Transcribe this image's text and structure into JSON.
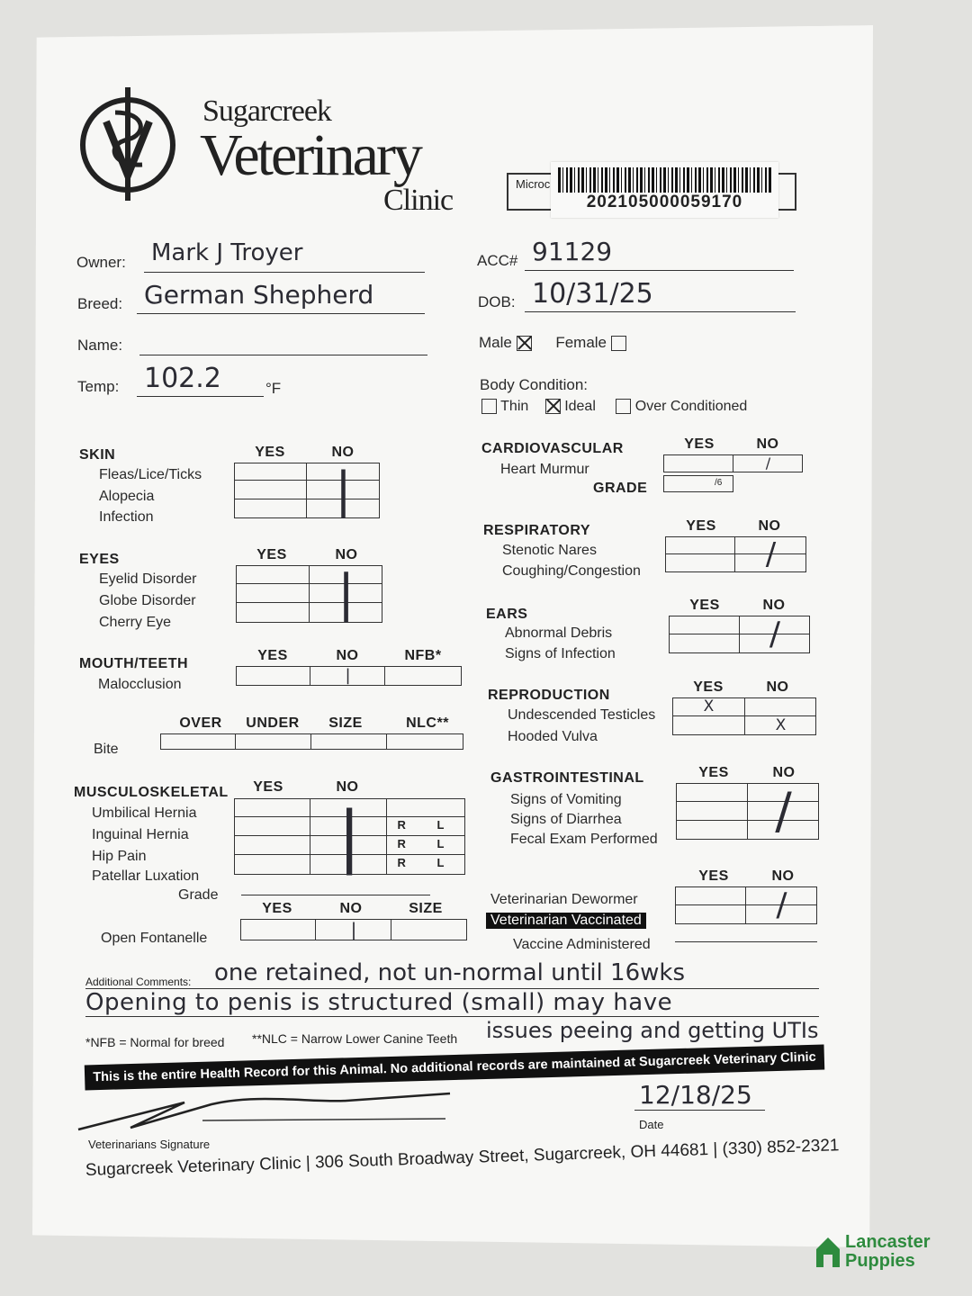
{
  "clinic": {
    "name_line1": "Sugarcreek",
    "name_line2": "Veterinary",
    "name_line3": "Clinic"
  },
  "microchip": {
    "label": "Microc",
    "number": "202105000059170"
  },
  "fields": {
    "owner": {
      "label": "Owner:",
      "value": "Mark J Troyer"
    },
    "breed": {
      "label": "Breed:",
      "value": "German Shepherd"
    },
    "name": {
      "label": "Name:",
      "value": ""
    },
    "temp": {
      "label": "Temp:",
      "value": "102.2",
      "unit": "°F"
    },
    "acc": {
      "label": "ACC#",
      "value": "91129"
    },
    "dob": {
      "label": "DOB:",
      "value": "10/31/25"
    }
  },
  "sex": {
    "male_label": "Male",
    "male_checked": true,
    "female_label": "Female",
    "female_checked": false
  },
  "body_condition": {
    "label": "Body Condition:",
    "options": [
      {
        "label": "Thin",
        "checked": false
      },
      {
        "label": "Ideal",
        "checked": true
      },
      {
        "label": "Over Conditioned",
        "checked": false
      }
    ]
  },
  "sections": [
    {
      "id": "skin",
      "title": "SKIN",
      "columns": [
        "YES",
        "NO"
      ],
      "rows": [
        "Fleas/Lice/Ticks",
        "Alopecia",
        "Infection"
      ],
      "mark": "|"
    },
    {
      "id": "eyes",
      "title": "EYES",
      "columns": [
        "YES",
        "NO"
      ],
      "rows": [
        "Eyelid Disorder",
        "Globe Disorder",
        "Cherry Eye"
      ],
      "mark": "|"
    },
    {
      "id": "mouth",
      "title": "MOUTH/TEETH",
      "columns": [
        "YES",
        "NO",
        "NFB*"
      ],
      "rows": [
        "Malocclusion"
      ],
      "mark": "|"
    },
    {
      "id": "bite",
      "title": "",
      "columns": [
        "OVER",
        "UNDER",
        "SIZE",
        "NLC**"
      ],
      "rows": [
        "Bite"
      ],
      "mark": ""
    },
    {
      "id": "musculo",
      "title": "MUSCULOSKELETAL",
      "columns": [
        "YES",
        "NO"
      ],
      "rows": [
        "Umbilical Hernia",
        "Inguinal Hernia",
        "Hip Pain",
        "Patellar Luxation"
      ],
      "side_labels": [
        "R",
        "L"
      ],
      "grade_label": "Grade",
      "mark": "|"
    },
    {
      "id": "fontanelle",
      "title": "",
      "columns": [
        "YES",
        "NO",
        "SIZE"
      ],
      "rows": [
        "Open Fontanelle"
      ],
      "mark": "|"
    },
    {
      "id": "cardio",
      "title": "CARDIOVASCULAR",
      "columns": [
        "YES",
        "NO"
      ],
      "rows": [
        "Heart Murmur"
      ],
      "grade_label": "GRADE",
      "grade_suffix": "/6",
      "mark": "/"
    },
    {
      "id": "resp",
      "title": "RESPIRATORY",
      "columns": [
        "YES",
        "NO"
      ],
      "rows": [
        "Stenotic Nares",
        "Coughing/Congestion"
      ],
      "mark": "/"
    },
    {
      "id": "ears",
      "title": "EARS",
      "columns": [
        "YES",
        "NO"
      ],
      "rows": [
        "Abnormal Debris",
        "Signs of Infection"
      ],
      "mark": "/"
    },
    {
      "id": "repro",
      "title": "REPRODUCTION",
      "columns": [
        "YES",
        "NO"
      ],
      "rows": [
        "Undescended Testicles",
        "Hooded Vulva"
      ],
      "row_marks": [
        "YES",
        "NO"
      ],
      "mark": "X"
    },
    {
      "id": "gi",
      "title": "GASTROINTESTINAL",
      "columns": [
        "YES",
        "NO"
      ],
      "rows": [
        "Signs of Vomiting",
        "Signs of Diarrhea",
        "Fecal Exam Performed"
      ],
      "mark": "/"
    },
    {
      "id": "deworm",
      "title": "",
      "columns": [
        "YES",
        "NO"
      ],
      "rows": [
        "Veterinarian Dewormer",
        "Veterinarian Vaccinated"
      ],
      "extra_label": "Vaccine Administered",
      "mark": "/"
    }
  ],
  "comments": {
    "label": "Additional Comments:",
    "line1": "one retained, not un-normal until 16wks",
    "line2": "Opening to penis is structured (small) may have",
    "line3": "issues peeing and getting UTIs"
  },
  "footnotes": {
    "nfb": "*NFB = Normal for breed",
    "nlc": "**NLC = Narrow Lower Canine Teeth"
  },
  "banner": "This is the entire Health Record for this Animal. No additional records are maintained at Sugarcreek Veterinary Clinic",
  "signature": {
    "label": "Veterinarians Signature",
    "date_value": "12/18/25",
    "date_label": "Date"
  },
  "footer": "Sugarcreek Veterinary Clinic | 306 South Broadway Street, Sugarcreek, OH 44681 | (330) 852-2321",
  "watermark": {
    "line1": "Lancaster",
    "line2": "Puppies",
    "color": "#2e8b3e"
  }
}
